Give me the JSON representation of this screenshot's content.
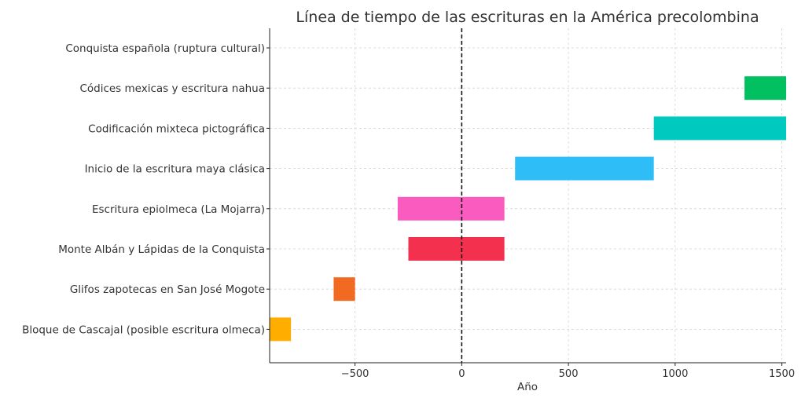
{
  "chart_data": {
    "type": "bar",
    "orientation": "horizontal",
    "title": "Línea de tiempo de las escrituras en la América precolombina",
    "xlabel": "Año",
    "ylabel": "",
    "xlim": [
      -900,
      1520
    ],
    "xticks": [
      -500,
      0,
      500,
      1000,
      1500
    ],
    "xtick_labels": [
      "−500",
      "0",
      "500",
      "1000",
      "1500"
    ],
    "grid": true,
    "reference_line": {
      "x": 0,
      "style": "dashed"
    },
    "categories": [
      "Conquista española (ruptura cultural)",
      "Códices mexicas y escritura nahua",
      "Codificación mixteca pictográfica",
      "Inicio de la escritura maya clásica",
      "Escritura epiolmeca (La Mojarra)",
      "Monte Albán y Lápidas de la Conquista",
      "Glifos zapotecas en San José Mogote",
      "Bloque de Cascajal (posible escritura olmeca)"
    ],
    "intervals": [
      {
        "start": 1521,
        "end": 1521,
        "color": "#d62728"
      },
      {
        "start": 1325,
        "end": 1521,
        "color": "#00c060"
      },
      {
        "start": 900,
        "end": 1521,
        "color": "#00c9c0"
      },
      {
        "start": 250,
        "end": 900,
        "color": "#2ebdf7"
      },
      {
        "start": -300,
        "end": 200,
        "color": "#fa5bbf"
      },
      {
        "start": -250,
        "end": 200,
        "color": "#f4304f"
      },
      {
        "start": -600,
        "end": -500,
        "color": "#f26a21"
      },
      {
        "start": -900,
        "end": -800,
        "color": "#ffae00"
      }
    ]
  }
}
